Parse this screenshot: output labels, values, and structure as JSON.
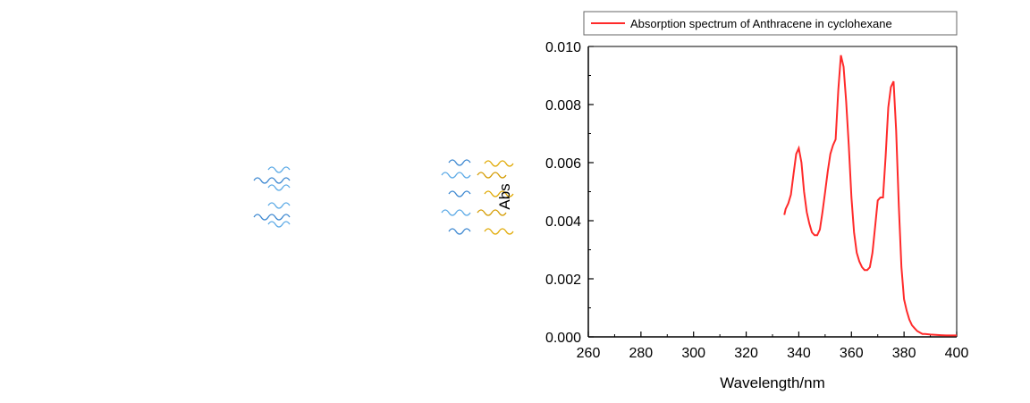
{
  "chart_data": {
    "type": "line",
    "title": "",
    "xlabel": "Wavelength/nm",
    "ylabel": "Abs",
    "xlim": [
      260,
      400
    ],
    "ylim": [
      0,
      0.01
    ],
    "x_ticks": [
      260,
      280,
      300,
      320,
      340,
      360,
      380,
      400
    ],
    "y_ticks": [
      "0.000",
      "0.002",
      "0.004",
      "0.006",
      "0.008",
      "0.010"
    ],
    "grid": false,
    "legend_position": "top",
    "series": [
      {
        "name": "Absorption spectrum of Anthracene in cyclohexane",
        "color": "#ff2a2a",
        "x": [
          334.5,
          335,
          336,
          337,
          338,
          339,
          340,
          341,
          342,
          343,
          344,
          345,
          346,
          347,
          348,
          349,
          350,
          351,
          352,
          353,
          354,
          355,
          356,
          357,
          358,
          359,
          360,
          361,
          362,
          363,
          364,
          365,
          366,
          367,
          368,
          369,
          370,
          371,
          372,
          373,
          374,
          375,
          376,
          377,
          378,
          379,
          380,
          381,
          382,
          383,
          384,
          385,
          386,
          387,
          388,
          390,
          392,
          394,
          396,
          398,
          400
        ],
        "y": [
          0.0042,
          0.0044,
          0.0046,
          0.0049,
          0.0056,
          0.0063,
          0.0065,
          0.006,
          0.005,
          0.0043,
          0.0039,
          0.0036,
          0.0035,
          0.0035,
          0.0037,
          0.0043,
          0.005,
          0.0057,
          0.0063,
          0.0066,
          0.0068,
          0.0085,
          0.0097,
          0.0093,
          0.0081,
          0.0066,
          0.0048,
          0.0036,
          0.0029,
          0.0026,
          0.0024,
          0.0023,
          0.0023,
          0.0024,
          0.0029,
          0.0038,
          0.0047,
          0.0048,
          0.0048,
          0.0062,
          0.0079,
          0.0086,
          0.0088,
          0.0071,
          0.0045,
          0.0024,
          0.0013,
          0.0009,
          0.0006,
          0.0004,
          0.0003,
          0.0002,
          0.00015,
          0.0001,
          0.0001,
          8e-05,
          7e-05,
          6e-05,
          5e-05,
          5e-05,
          5e-05
        ]
      }
    ]
  }
}
